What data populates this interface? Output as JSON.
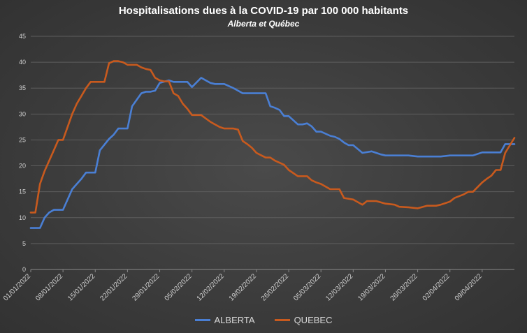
{
  "chart_data": {
    "type": "line",
    "title": "Hospitalisations dues à la COVID-19 par 100 000 habitants",
    "subtitle": "Alberta et Québec",
    "xlabel": "",
    "ylabel": "",
    "ylim": [
      0,
      45
    ],
    "yticks": [
      0,
      5,
      10,
      15,
      20,
      25,
      30,
      35,
      40,
      45
    ],
    "grid": true,
    "legend_position": "bottom",
    "x_tick_labels": [
      "01/01/2022",
      "08/01/2022",
      "15/01/2022",
      "22/01/2022",
      "29/01/2022",
      "05/02/2022",
      "12/02/2022",
      "19/02/2022",
      "26/02/2022",
      "05/03/2022",
      "12/03/2022",
      "19/03/2022",
      "26/03/2022",
      "02/04/2022",
      "09/04/2022"
    ],
    "x_start": "01/01/2022",
    "x_end": "16/04/2022",
    "series": [
      {
        "name": "ALBERTA",
        "color": "#4a7fd4",
        "x": [
          "01/01/2022",
          "03/01/2022",
          "04/01/2022",
          "05/01/2022",
          "06/01/2022",
          "07/01/2022",
          "08/01/2022",
          "10/01/2022",
          "11/01/2022",
          "12/01/2022",
          "13/01/2022",
          "14/01/2022",
          "15/01/2022",
          "16/01/2022",
          "18/01/2022",
          "19/01/2022",
          "20/01/2022",
          "21/01/2022",
          "22/01/2022",
          "23/01/2022",
          "25/01/2022",
          "26/01/2022",
          "27/01/2022",
          "28/01/2022",
          "29/01/2022",
          "31/01/2022",
          "01/02/2022",
          "02/02/2022",
          "03/02/2022",
          "04/02/2022",
          "05/02/2022",
          "07/02/2022",
          "08/02/2022",
          "09/02/2022",
          "10/02/2022",
          "11/02/2022",
          "12/02/2022",
          "14/02/2022",
          "15/02/2022",
          "16/02/2022",
          "17/02/2022",
          "18/02/2022",
          "21/02/2022",
          "22/02/2022",
          "23/02/2022",
          "24/02/2022",
          "25/02/2022",
          "26/02/2022",
          "28/02/2022",
          "01/03/2022",
          "02/03/2022",
          "03/03/2022",
          "04/03/2022",
          "05/03/2022",
          "07/03/2022",
          "08/03/2022",
          "09/03/2022",
          "10/03/2022",
          "11/03/2022",
          "12/03/2022",
          "14/03/2022",
          "16/03/2022",
          "17/03/2022",
          "18/03/2022",
          "19/03/2022",
          "21/03/2022",
          "23/03/2022",
          "24/03/2022",
          "26/03/2022",
          "28/03/2022",
          "30/03/2022",
          "31/03/2022",
          "02/04/2022",
          "04/04/2022",
          "06/04/2022",
          "07/04/2022",
          "09/04/2022",
          "11/04/2022",
          "13/04/2022",
          "14/04/2022",
          "16/04/2022"
        ],
        "values": [
          8,
          8,
          10,
          11,
          11.5,
          11.5,
          11.5,
          15.5,
          16.5,
          17.5,
          18.7,
          18.7,
          18.7,
          23,
          25.2,
          26,
          27.2,
          27.2,
          27.2,
          31.5,
          34,
          34.3,
          34.3,
          34.5,
          36,
          36.5,
          36.2,
          36.2,
          36.2,
          36.2,
          35.2,
          37,
          36.5,
          36,
          35.8,
          35.8,
          35.8,
          35,
          34.5,
          34,
          34,
          34,
          34,
          31.5,
          31.2,
          30.8,
          29.6,
          29.6,
          28,
          28,
          28.2,
          27.6,
          26.6,
          26.6,
          25.8,
          25.6,
          25.2,
          24.5,
          24,
          24,
          22.5,
          22.8,
          22.5,
          22.2,
          22,
          22,
          22,
          22,
          21.8,
          21.8,
          21.8,
          21.8,
          22,
          22,
          22,
          22,
          22.6,
          22.6,
          22.6,
          24.2,
          24.2
        ]
      },
      {
        "name": "QUEBEC",
        "color": "#c85a1e",
        "x": [
          "01/01/2022",
          "02/01/2022",
          "03/01/2022",
          "04/01/2022",
          "05/01/2022",
          "06/01/2022",
          "07/01/2022",
          "08/01/2022",
          "10/01/2022",
          "11/01/2022",
          "12/01/2022",
          "13/01/2022",
          "14/01/2022",
          "15/01/2022",
          "17/01/2022",
          "18/01/2022",
          "19/01/2022",
          "20/01/2022",
          "21/01/2022",
          "22/01/2022",
          "24/01/2022",
          "25/01/2022",
          "26/01/2022",
          "27/01/2022",
          "28/01/2022",
          "29/01/2022",
          "30/01/2022",
          "31/01/2022",
          "01/02/2022",
          "02/02/2022",
          "03/02/2022",
          "04/02/2022",
          "05/02/2022",
          "06/02/2022",
          "07/02/2022",
          "09/02/2022",
          "10/02/2022",
          "11/02/2022",
          "12/02/2022",
          "14/02/2022",
          "15/02/2022",
          "16/02/2022",
          "17/02/2022",
          "18/02/2022",
          "19/02/2022",
          "21/02/2022",
          "22/02/2022",
          "23/02/2022",
          "25/02/2022",
          "26/02/2022",
          "28/02/2022",
          "01/03/2022",
          "02/03/2022",
          "03/03/2022",
          "04/03/2022",
          "05/03/2022",
          "07/03/2022",
          "08/03/2022",
          "09/03/2022",
          "10/03/2022",
          "12/03/2022",
          "14/03/2022",
          "15/03/2022",
          "16/03/2022",
          "17/03/2022",
          "19/03/2022",
          "21/03/2022",
          "22/03/2022",
          "24/03/2022",
          "26/03/2022",
          "28/03/2022",
          "30/03/2022",
          "31/03/2022",
          "02/04/2022",
          "03/04/2022",
          "05/04/2022",
          "06/04/2022",
          "07/04/2022",
          "09/04/2022",
          "10/04/2022",
          "11/04/2022",
          "12/04/2022",
          "13/04/2022",
          "14/04/2022",
          "16/04/2022"
        ],
        "values": [
          11,
          11,
          16.5,
          19,
          21,
          23,
          25,
          25,
          30,
          32,
          33.5,
          35,
          36.2,
          36.2,
          36.2,
          39.8,
          40.2,
          40.2,
          40,
          39.5,
          39.5,
          39,
          38.7,
          38.5,
          37,
          36.5,
          36.3,
          36.3,
          34,
          33.5,
          32,
          31,
          29.8,
          29.8,
          29.8,
          28.5,
          28,
          27.5,
          27.2,
          27.2,
          27,
          24.8,
          24.2,
          23.5,
          22.5,
          21.6,
          21.6,
          21,
          20.2,
          19.2,
          18,
          18,
          18,
          17.2,
          16.8,
          16.5,
          15.5,
          15.5,
          15.5,
          13.8,
          13.5,
          12.5,
          13.2,
          13.2,
          13.2,
          12.7,
          12.5,
          12.1,
          12,
          11.8,
          12.3,
          12.3,
          12.5,
          13.1,
          13.8,
          14.5,
          15,
          15,
          16.8,
          17.5,
          18.1,
          19.2,
          19.2,
          22.5,
          25.4
        ]
      }
    ]
  }
}
